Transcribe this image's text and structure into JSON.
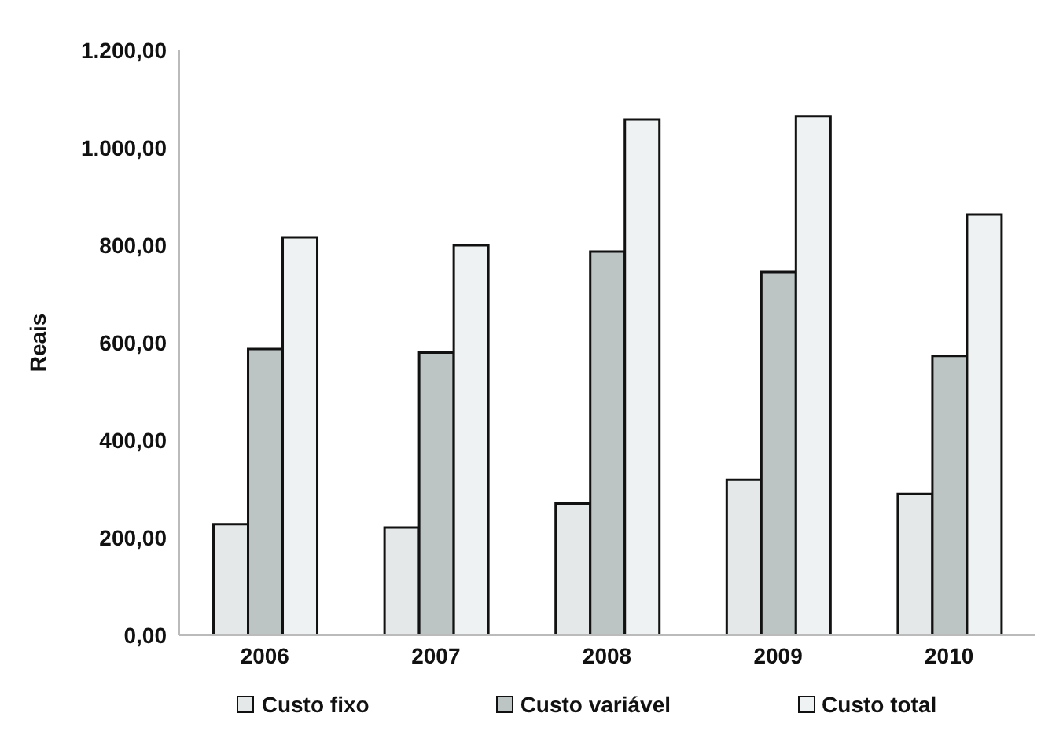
{
  "chart_data": {
    "type": "bar",
    "ylabel": "Reais",
    "categories": [
      "2006",
      "2007",
      "2008",
      "2009",
      "2010"
    ],
    "series": [
      {
        "name": "Custo fixo",
        "color": "#e4e8e8",
        "values": [
          228,
          221,
          270,
          319,
          290
        ]
      },
      {
        "name": "Custo variável",
        "color": "#bcc4c4",
        "values": [
          587,
          580,
          787,
          745,
          573
        ]
      },
      {
        "name": "Custo total",
        "color": "#eef2f2",
        "values": [
          816,
          800,
          1058,
          1065,
          863
        ]
      }
    ],
    "ylim": [
      0,
      1200
    ],
    "yticks": [
      {
        "value": 0,
        "label": "0,00"
      },
      {
        "value": 200,
        "label": "200,00"
      },
      {
        "value": 400,
        "label": "400,00"
      },
      {
        "value": 600,
        "label": "600,00"
      },
      {
        "value": 800,
        "label": "800,00"
      },
      {
        "value": 1000,
        "label": "1.000,00"
      },
      {
        "value": 1200,
        "label": "1.200,00"
      }
    ],
    "grid": false,
    "legend": "bottom"
  }
}
